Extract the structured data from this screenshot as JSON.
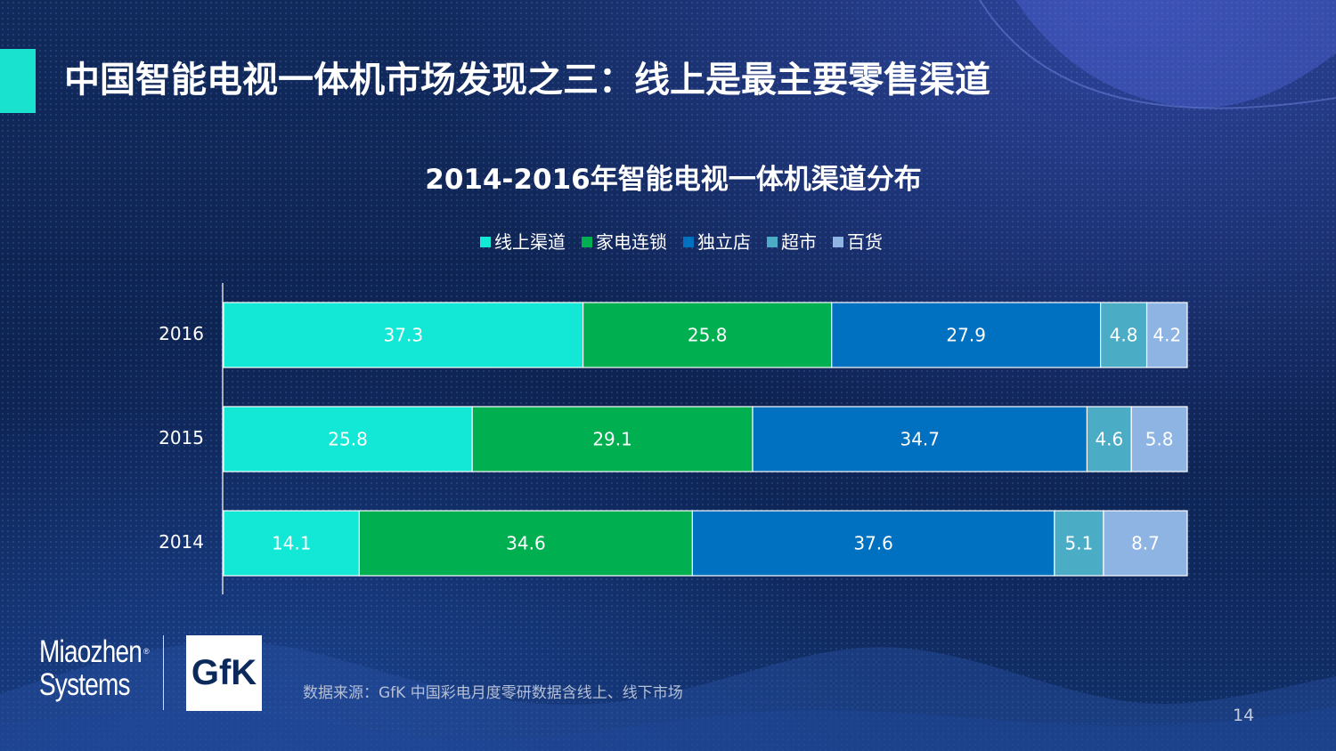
{
  "slide": {
    "title": "中国智能电视一体机市场发现之三：线上是最主要零售渠道",
    "source_note": "数据来源：GfK 中国彩电月度零研数据含线上、线下市场",
    "page_number": "14"
  },
  "logos": {
    "miaozhen_line1": "Miaozhen",
    "miaozhen_line2": "Systems",
    "miaozhen_mark": "®",
    "gfk": "GfK"
  },
  "colors": {
    "background": "#0d2350",
    "accent": "#19e3cf"
  },
  "chart_data": {
    "type": "bar",
    "orientation": "horizontal",
    "stacked": true,
    "title": "2014-2016年智能电视一体机渠道分布",
    "legend_position": "top",
    "grid": false,
    "xlim": [
      0,
      100
    ],
    "categories": [
      "2016",
      "2015",
      "2014"
    ],
    "series": [
      {
        "name": "线上渠道",
        "color": "#13e8d6",
        "values": [
          37.3,
          25.8,
          14.1
        ]
      },
      {
        "name": "家电连锁",
        "color": "#00b050",
        "values": [
          25.8,
          29.1,
          34.6
        ]
      },
      {
        "name": "独立店",
        "color": "#0070c0",
        "values": [
          27.9,
          34.7,
          37.6
        ]
      },
      {
        "name": "超市",
        "color": "#4bacc6",
        "values": [
          4.8,
          4.6,
          5.1
        ]
      },
      {
        "name": "百货",
        "color": "#8eb4e3",
        "values": [
          4.2,
          5.8,
          8.7
        ]
      }
    ]
  }
}
